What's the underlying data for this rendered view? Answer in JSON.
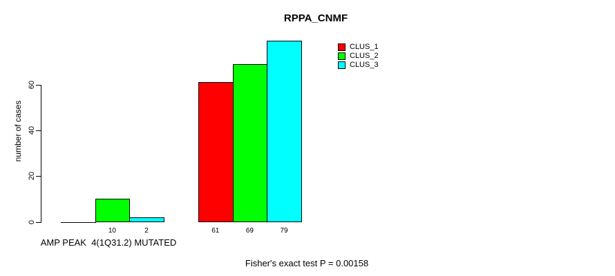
{
  "chart_data": {
    "type": "bar",
    "title": "RPPA_CNMF",
    "ylabel": "number of cases",
    "xlabel": "AMP PEAK  4(1Q31.2) MUTATED",
    "footnote": "Fisher's exact test P = 0.00158",
    "categories": [
      "AMP PEAK  4(1Q31.2) MUTATED",
      ""
    ],
    "series": [
      {
        "name": "CLUS_1",
        "color": "#ff0000",
        "values": [
          0,
          61
        ]
      },
      {
        "name": "CLUS_2",
        "color": "#00ff00",
        "values": [
          10,
          69
        ]
      },
      {
        "name": "CLUS_3",
        "color": "#00ffff",
        "values": [
          2,
          79
        ]
      }
    ],
    "bar_value_labels": [
      [
        "",
        "10",
        "2"
      ],
      [
        "61",
        "69",
        "79"
      ]
    ],
    "yticks": [
      0,
      20,
      40,
      60
    ],
    "ylim": [
      0,
      79
    ],
    "grid": false,
    "legend_position": "top-right",
    "background": "#ffffff",
    "text_color": "#000000"
  }
}
